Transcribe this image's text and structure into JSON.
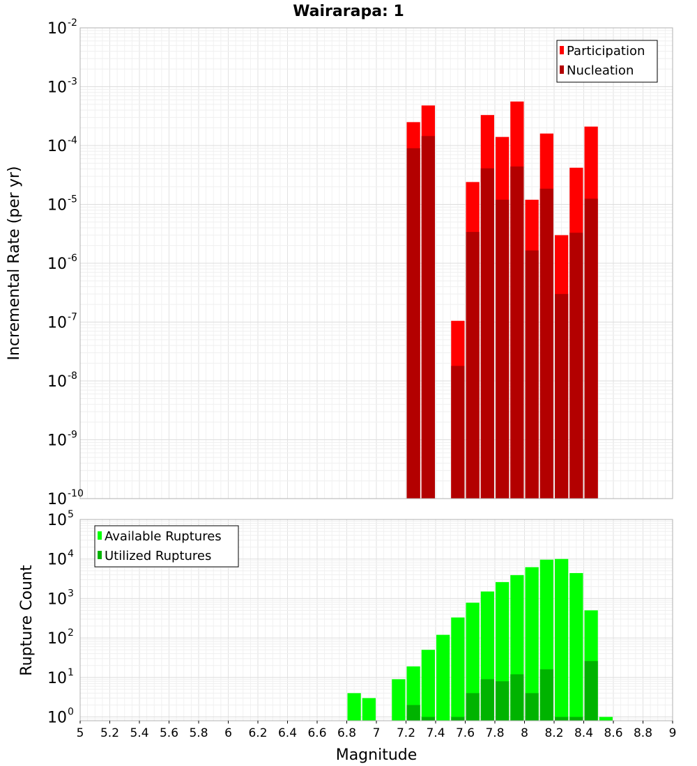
{
  "chart_data": [
    {
      "type": "bar",
      "title": "Wairarapa: 1",
      "xlabel": "",
      "ylabel": "Incremental Rate (per yr)",
      "yscale": "log",
      "xlim": [
        5,
        9
      ],
      "ylim": [
        1e-10,
        0.01
      ],
      "ytick_exponents": [
        -10,
        -9,
        -8,
        -7,
        -6,
        -5,
        -4,
        -3,
        -2
      ],
      "grid": true,
      "legend_position": "top-right",
      "bar_width": 0.1,
      "series": [
        {
          "name": "Participation",
          "color": "#ff0000",
          "x": [
            7.25,
            7.35,
            7.55,
            7.65,
            7.75,
            7.85,
            7.95,
            8.05,
            8.15,
            8.25,
            8.35,
            8.45
          ],
          "values": [
            0.00025,
            0.00048,
            1.05e-07,
            2.4e-05,
            0.00033,
            0.00014,
            0.00056,
            1.2e-05,
            0.00016,
            3e-06,
            4.2e-05,
            0.00021
          ]
        },
        {
          "name": "Nucleation",
          "color": "#b30000",
          "x": [
            7.25,
            7.35,
            7.55,
            7.65,
            7.75,
            7.85,
            7.95,
            8.05,
            8.15,
            8.25,
            8.35,
            8.45
          ],
          "values": [
            9e-05,
            0.000145,
            1.8e-08,
            3.4e-06,
            4.1e-05,
            1.2e-05,
            4.4e-05,
            1.65e-06,
            1.85e-05,
            3e-07,
            3.3e-06,
            1.25e-05
          ]
        }
      ]
    },
    {
      "type": "bar",
      "title": "",
      "xlabel": "Magnitude",
      "ylabel": "Rupture Count",
      "yscale": "log",
      "xlim": [
        5,
        9
      ],
      "ylim": [
        0.8,
        100000
      ],
      "ytick_exponents": [
        0,
        1,
        2,
        3,
        4,
        5
      ],
      "xticks": [
        "5",
        "5.2",
        "5.4",
        "5.6",
        "5.8",
        "6",
        "6.2",
        "6.4",
        "6.6",
        "6.8",
        "7",
        "7.2",
        "7.4",
        "7.6",
        "7.8",
        "8",
        "8.2",
        "8.4",
        "8.6",
        "8.8",
        "9"
      ],
      "grid": true,
      "legend_position": "top-left",
      "bar_width": 0.1,
      "series": [
        {
          "name": "Available Ruptures",
          "color": "#00ff00",
          "x": [
            6.85,
            6.95,
            7.15,
            7.25,
            7.35,
            7.45,
            7.55,
            7.65,
            7.75,
            7.85,
            7.95,
            8.05,
            8.15,
            8.25,
            8.35,
            8.45,
            8.55
          ],
          "values": [
            4,
            3,
            9,
            19,
            50,
            120,
            330,
            780,
            1500,
            2600,
            3900,
            6200,
            9600,
            10000,
            4400,
            500,
            1
          ]
        },
        {
          "name": "Utilized Ruptures",
          "color": "#00b300",
          "x": [
            7.25,
            7.35,
            7.55,
            7.65,
            7.75,
            7.85,
            7.95,
            8.05,
            8.15,
            8.25,
            8.35,
            8.45
          ],
          "values": [
            2,
            1,
            1,
            4,
            9,
            8,
            12,
            4,
            16,
            1,
            1,
            26
          ]
        }
      ]
    }
  ]
}
